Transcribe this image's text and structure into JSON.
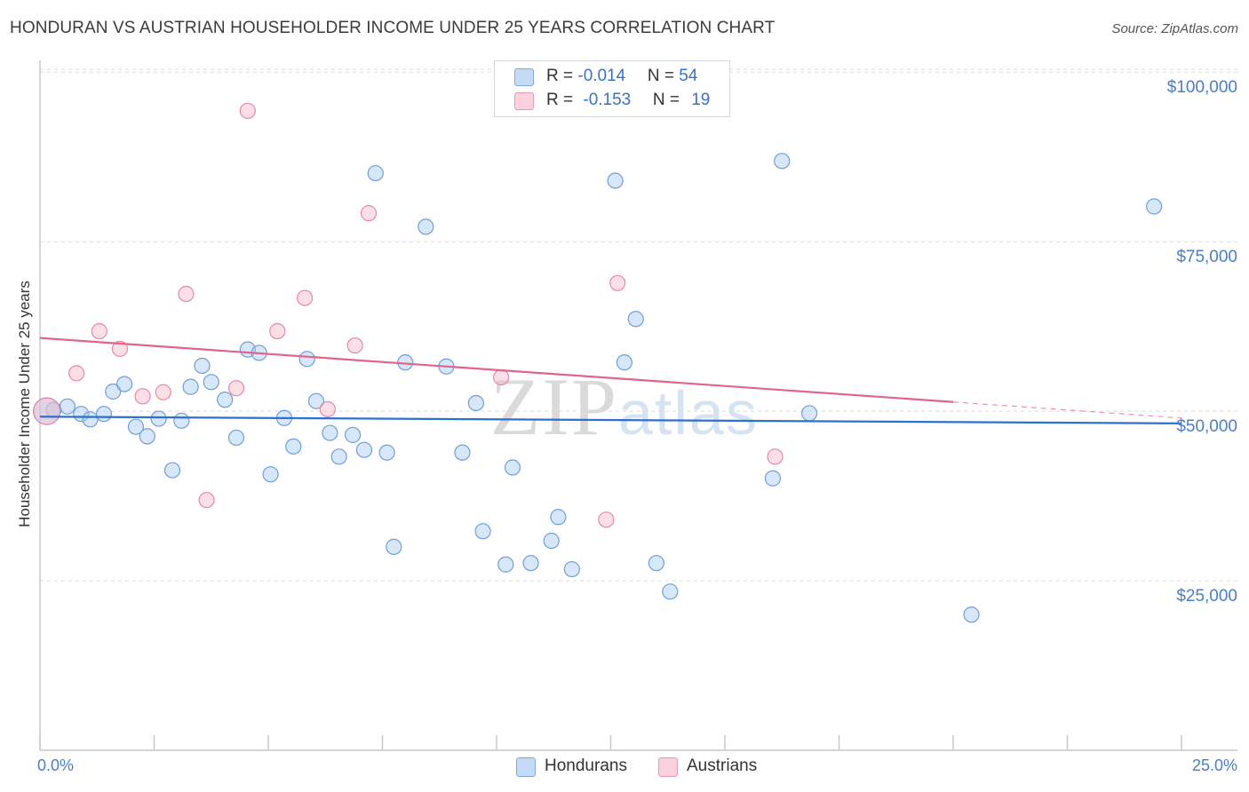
{
  "header": {
    "title": "HONDURAN VS AUSTRIAN HOUSEHOLDER INCOME UNDER 25 YEARS CORRELATION CHART",
    "source": "Source: ZipAtlas.com"
  },
  "watermark": {
    "zip": "ZIP",
    "atlas": "atlas"
  },
  "legend": {
    "rows": [
      {
        "r_label": "R = ",
        "r_value": "-0.014",
        "n_label": "N = ",
        "n_value": "54",
        "color": "#a9c9f0"
      },
      {
        "r_label": "R = ",
        "r_value": "-0.153",
        "n_label": "N = ",
        "n_value": "19",
        "color": "#f5b8c9"
      }
    ]
  },
  "bottom_legend": {
    "series1": "Hondurans",
    "series2": "Austrians"
  },
  "chart_data": {
    "type": "scatter",
    "title": "HONDURAN VS AUSTRIAN HOUSEHOLDER INCOME UNDER 25 YEARS CORRELATION CHART",
    "xlabel": "",
    "ylabel": "Householder Income Under 25 years",
    "xlim": [
      0,
      25
    ],
    "ylim": [
      0,
      102000
    ],
    "x_tick_labels": [
      "0.0%",
      "25.0%"
    ],
    "y_ticks": [
      {
        "value": 25000,
        "label": "$25,000"
      },
      {
        "value": 50000,
        "label": "$50,000"
      },
      {
        "value": 75000,
        "label": "$75,000"
      },
      {
        "value": 100000,
        "label": "$100,000"
      }
    ],
    "grid": true,
    "legend_position": "top-center",
    "series": [
      {
        "name": "Hondurans",
        "color": "#a9c9f0",
        "edge": "#6f9fd8",
        "trend_color": "#2f6fcf",
        "trend": {
          "x0": 0,
          "y0": 49200,
          "x1": 25,
          "y1": 48200,
          "solid_until": 25
        },
        "points": [
          [
            0.3,
            50200
          ],
          [
            0.6,
            50700
          ],
          [
            0.9,
            49600
          ],
          [
            1.1,
            48800
          ],
          [
            1.4,
            49600
          ],
          [
            1.6,
            52900
          ],
          [
            1.85,
            54000
          ],
          [
            2.1,
            47700
          ],
          [
            2.35,
            46300
          ],
          [
            2.6,
            48900
          ],
          [
            2.9,
            41300
          ],
          [
            3.1,
            48600
          ],
          [
            3.3,
            53600
          ],
          [
            3.55,
            56700
          ],
          [
            3.75,
            54300
          ],
          [
            4.05,
            51700
          ],
          [
            4.3,
            46100
          ],
          [
            4.55,
            59100
          ],
          [
            4.8,
            58600
          ],
          [
            5.05,
            40700
          ],
          [
            5.35,
            49000
          ],
          [
            5.55,
            44800
          ],
          [
            5.85,
            57700
          ],
          [
            6.05,
            51500
          ],
          [
            6.35,
            46800
          ],
          [
            6.55,
            43300
          ],
          [
            6.85,
            46500
          ],
          [
            7.1,
            44300
          ],
          [
            7.35,
            85100
          ],
          [
            7.6,
            43900
          ],
          [
            7.75,
            30000
          ],
          [
            8.0,
            57200
          ],
          [
            8.45,
            77200
          ],
          [
            8.9,
            56600
          ],
          [
            9.25,
            43900
          ],
          [
            9.55,
            51200
          ],
          [
            9.7,
            32300
          ],
          [
            10.2,
            27400
          ],
          [
            10.35,
            41700
          ],
          [
            10.75,
            27600
          ],
          [
            11.2,
            30900
          ],
          [
            11.35,
            34400
          ],
          [
            11.65,
            26700
          ],
          [
            12.6,
            84000
          ],
          [
            12.8,
            57200
          ],
          [
            13.05,
            63600
          ],
          [
            13.5,
            27600
          ],
          [
            13.8,
            23400
          ],
          [
            16.05,
            40100
          ],
          [
            16.25,
            86900
          ],
          [
            16.85,
            49700
          ],
          [
            20.4,
            20000
          ],
          [
            24.4,
            80200
          ],
          [
            0.15,
            50000
          ]
        ]
      },
      {
        "name": "Austrians",
        "color": "#f5b8c9",
        "edge": "#e48aa6",
        "trend_color": "#e0648d",
        "trend": {
          "x0": 0,
          "y0": 60800,
          "x1": 25,
          "y1": 49000,
          "solid_until": 20
        },
        "points": [
          [
            0.15,
            50000
          ],
          [
            0.8,
            55600
          ],
          [
            1.3,
            61800
          ],
          [
            1.75,
            59200
          ],
          [
            2.25,
            52200
          ],
          [
            2.7,
            52800
          ],
          [
            3.2,
            67300
          ],
          [
            3.65,
            36900
          ],
          [
            4.3,
            53400
          ],
          [
            4.55,
            94300
          ],
          [
            5.2,
            61800
          ],
          [
            5.8,
            66700
          ],
          [
            6.3,
            50300
          ],
          [
            6.9,
            59700
          ],
          [
            7.2,
            79200
          ],
          [
            10.1,
            55000
          ],
          [
            12.4,
            34000
          ],
          [
            12.65,
            68900
          ],
          [
            16.1,
            43300
          ]
        ]
      }
    ]
  }
}
